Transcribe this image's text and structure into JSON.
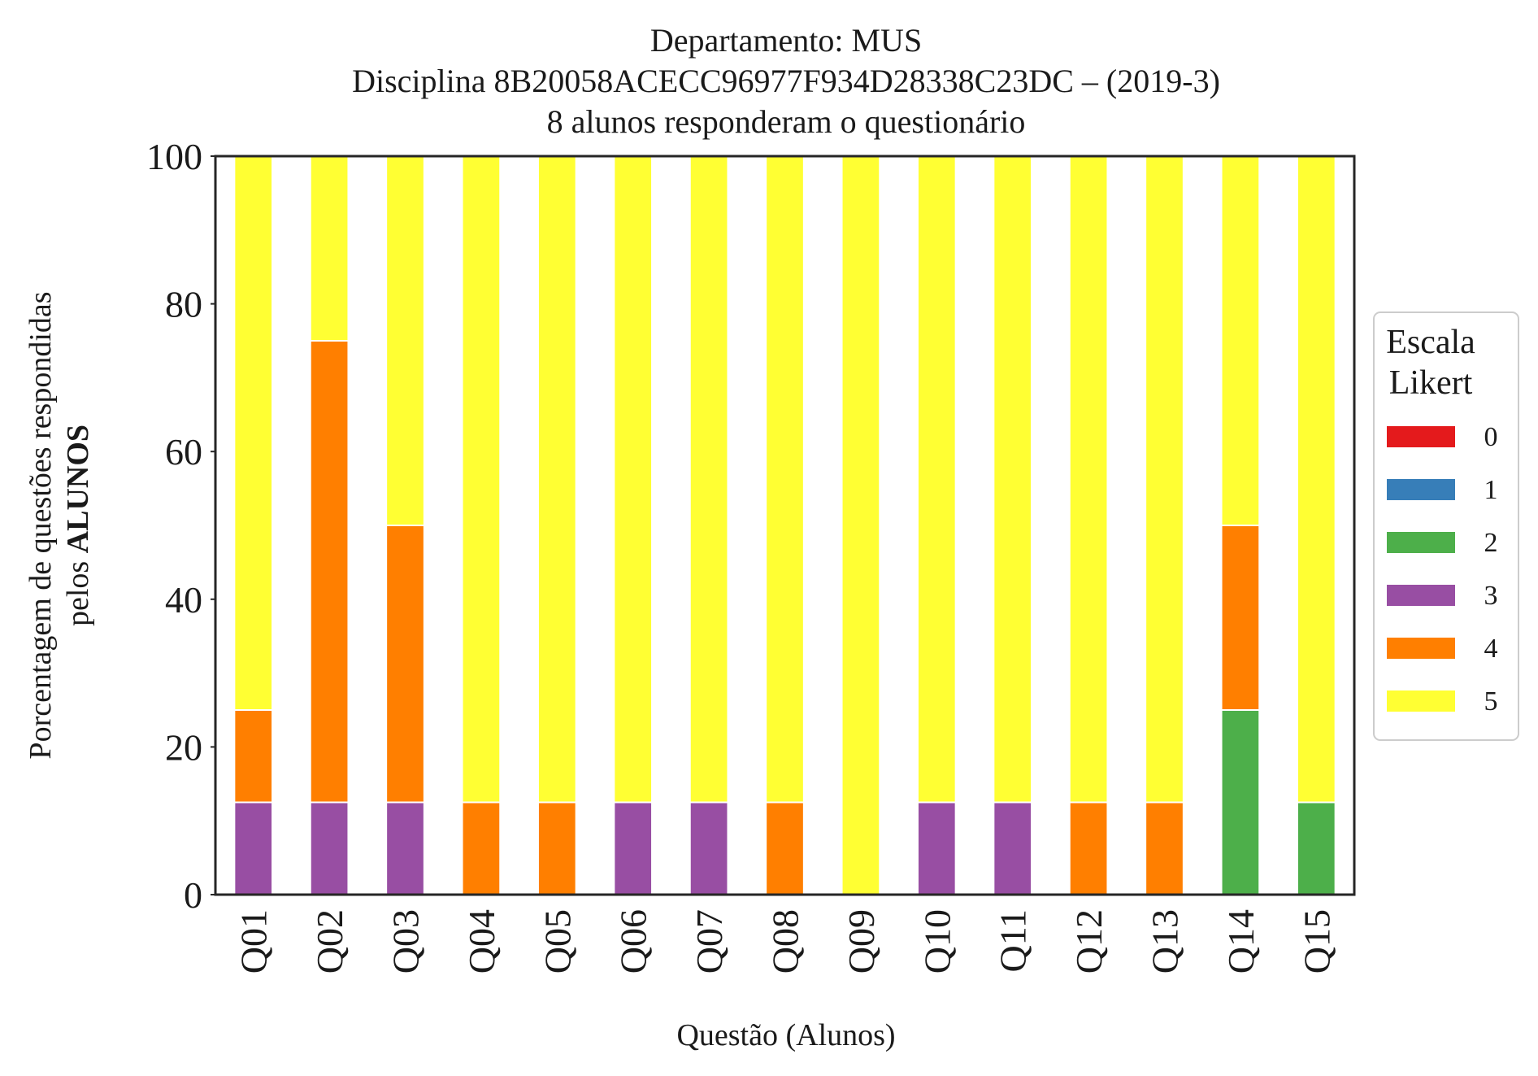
{
  "chart_data": {
    "type": "bar",
    "stacked": true,
    "title_lines": [
      "Departamento: MUS",
      "Disciplina 8B20058ACECC96977F934D28338C23DC – (2019-3)",
      "8 alunos responderam o questionário"
    ],
    "xlabel": "Questão (Alunos)",
    "ylabel_line1": "Porcentagem de questões respondidas",
    "ylabel_line2_prefix": "pelos",
    "ylabel_line2_bold": "ALUNOS",
    "ylim": [
      0,
      100
    ],
    "yticks": [
      "0",
      "20",
      "40",
      "60",
      "80",
      "100"
    ],
    "categories": [
      "Q01",
      "Q02",
      "Q03",
      "Q04",
      "Q05",
      "Q06",
      "Q07",
      "Q08",
      "Q09",
      "Q10",
      "Q11",
      "Q12",
      "Q13",
      "Q14",
      "Q15"
    ],
    "series": [
      {
        "name": "0",
        "color": "#e41a1c",
        "values": [
          0,
          0,
          0,
          0,
          0,
          0,
          0,
          0,
          0,
          0,
          0,
          0,
          0,
          0,
          0
        ]
      },
      {
        "name": "1",
        "color": "#377eb8",
        "values": [
          0,
          0,
          0,
          0,
          0,
          0,
          0,
          0,
          0,
          0,
          0,
          0,
          0,
          0,
          0
        ]
      },
      {
        "name": "2",
        "color": "#4daf4a",
        "values": [
          0,
          0,
          0,
          0,
          0,
          0,
          0,
          0,
          0,
          0,
          0,
          0,
          0,
          25,
          12.5
        ]
      },
      {
        "name": "3",
        "color": "#984ea3",
        "values": [
          12.5,
          12.5,
          12.5,
          0,
          0,
          12.5,
          12.5,
          0,
          0,
          12.5,
          12.5,
          0,
          0,
          0,
          0
        ]
      },
      {
        "name": "4",
        "color": "#ff7f00",
        "values": [
          12.5,
          62.5,
          37.5,
          12.5,
          12.5,
          0,
          0,
          12.5,
          0,
          0,
          0,
          12.5,
          12.5,
          25,
          0
        ]
      },
      {
        "name": "5",
        "color": "#ffff33",
        "values": [
          75,
          25,
          50,
          87.5,
          87.5,
          87.5,
          87.5,
          87.5,
          100,
          87.5,
          87.5,
          87.5,
          87.5,
          50,
          87.5
        ]
      }
    ],
    "legend": {
      "title_lines": [
        "Escala",
        "Likert"
      ],
      "position": "right"
    },
    "grid": false
  }
}
